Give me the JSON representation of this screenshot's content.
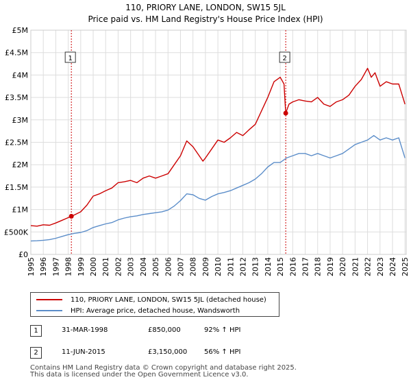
{
  "chart_data": {
    "type": "line",
    "title": "110, PRIORY LANE, LONDON, SW15 5JL",
    "subtitle": "Price paid vs. HM Land Registry's House Price Index (HPI)",
    "xlim": [
      1995,
      2025.1
    ],
    "ylim": [
      0,
      5000000
    ],
    "y_ticks": [
      {
        "value": 0,
        "label": "£0"
      },
      {
        "value": 500000,
        "label": "£500K"
      },
      {
        "value": 1000000,
        "label": "£1M"
      },
      {
        "value": 1500000,
        "label": "£1.5M"
      },
      {
        "value": 2000000,
        "label": "£2M"
      },
      {
        "value": 2500000,
        "label": "£2.5M"
      },
      {
        "value": 3000000,
        "label": "£3M"
      },
      {
        "value": 3500000,
        "label": "£3.5M"
      },
      {
        "value": 4000000,
        "label": "£4M"
      },
      {
        "value": 4500000,
        "label": "£4.5M"
      },
      {
        "value": 5000000,
        "label": "£5M"
      }
    ],
    "x_ticks": [
      "1995",
      "1996",
      "1997",
      "1998",
      "1999",
      "2000",
      "2001",
      "2002",
      "2003",
      "2004",
      "2005",
      "2006",
      "2007",
      "2008",
      "2009",
      "2010",
      "2011",
      "2012",
      "2013",
      "2014",
      "2015",
      "2016",
      "2017",
      "2018",
      "2019",
      "2020",
      "2021",
      "2022",
      "2023",
      "2024",
      "2025"
    ],
    "grid": true,
    "series": [
      {
        "name": "110, PRIORY LANE, LONDON, SW15 5JL (detached house)",
        "color": "#cc0000",
        "x": [
          1995.0,
          1995.5,
          1996.0,
          1996.5,
          1997.0,
          1997.5,
          1998.0,
          1998.25,
          1998.5,
          1999.0,
          1999.5,
          2000.0,
          2000.5,
          2001.0,
          2001.5,
          2002.0,
          2002.5,
          2003.0,
          2003.5,
          2004.0,
          2004.5,
          2005.0,
          2005.5,
          2006.0,
          2006.5,
          2007.0,
          2007.5,
          2008.0,
          2008.5,
          2008.8,
          2009.0,
          2009.5,
          2010.0,
          2010.5,
          2011.0,
          2011.5,
          2012.0,
          2012.5,
          2013.0,
          2013.5,
          2014.0,
          2014.5,
          2015.0,
          2015.3,
          2015.44,
          2015.7,
          2016.0,
          2016.5,
          2017.0,
          2017.5,
          2018.0,
          2018.5,
          2019.0,
          2019.5,
          2020.0,
          2020.5,
          2021.0,
          2021.5,
          2022.0,
          2022.3,
          2022.6,
          2023.0,
          2023.5,
          2024.0,
          2024.5,
          2025.0
        ],
        "values": [
          640000,
          630000,
          660000,
          650000,
          700000,
          760000,
          820000,
          850000,
          880000,
          950000,
          1100000,
          1300000,
          1350000,
          1420000,
          1480000,
          1600000,
          1620000,
          1650000,
          1600000,
          1700000,
          1750000,
          1700000,
          1750000,
          1800000,
          2000000,
          2200000,
          2530000,
          2400000,
          2200000,
          2080000,
          2150000,
          2350000,
          2550000,
          2500000,
          2600000,
          2720000,
          2650000,
          2780000,
          2900000,
          3200000,
          3500000,
          3850000,
          3950000,
          3800000,
          3150000,
          3350000,
          3400000,
          3450000,
          3420000,
          3400000,
          3500000,
          3350000,
          3300000,
          3400000,
          3450000,
          3550000,
          3750000,
          3900000,
          4150000,
          3950000,
          4050000,
          3750000,
          3850000,
          3800000,
          3800000,
          3350000
        ]
      },
      {
        "name": "HPI: Average price, detached house, Wandsworth",
        "color": "#5b8dc9",
        "x": [
          1995.0,
          1995.5,
          1996.0,
          1996.5,
          1997.0,
          1997.5,
          1998.0,
          1998.5,
          1999.0,
          1999.5,
          2000.0,
          2000.5,
          2001.0,
          2001.5,
          2002.0,
          2002.5,
          2003.0,
          2003.5,
          2004.0,
          2004.5,
          2005.0,
          2005.5,
          2006.0,
          2006.5,
          2007.0,
          2007.5,
          2008.0,
          2008.5,
          2009.0,
          2009.5,
          2010.0,
          2010.5,
          2011.0,
          2011.5,
          2012.0,
          2012.5,
          2013.0,
          2013.5,
          2014.0,
          2014.5,
          2015.0,
          2015.5,
          2016.0,
          2016.5,
          2017.0,
          2017.5,
          2018.0,
          2018.5,
          2019.0,
          2019.5,
          2020.0,
          2020.5,
          2021.0,
          2021.5,
          2022.0,
          2022.5,
          2023.0,
          2023.5,
          2024.0,
          2024.5,
          2025.0
        ],
        "values": [
          300000,
          305000,
          315000,
          330000,
          360000,
          400000,
          440000,
          470000,
          490000,
          530000,
          600000,
          640000,
          680000,
          710000,
          770000,
          810000,
          840000,
          860000,
          890000,
          910000,
          930000,
          950000,
          990000,
          1080000,
          1200000,
          1350000,
          1330000,
          1250000,
          1210000,
          1290000,
          1350000,
          1380000,
          1420000,
          1480000,
          1540000,
          1600000,
          1680000,
          1800000,
          1950000,
          2050000,
          2050000,
          2150000,
          2200000,
          2250000,
          2250000,
          2200000,
          2250000,
          2200000,
          2150000,
          2200000,
          2250000,
          2350000,
          2450000,
          2500000,
          2550000,
          2650000,
          2550000,
          2600000,
          2550000,
          2600000,
          2150000
        ]
      }
    ],
    "transactions": [
      {
        "id": "1",
        "date": "31-MAR-1998",
        "year": 1998.25,
        "price": 850000,
        "price_label": "£850,000",
        "hpi_change": "92% ↑ HPI"
      },
      {
        "id": "2",
        "date": "11-JUN-2015",
        "year": 2015.44,
        "price": 3150000,
        "price_label": "£3,150,000",
        "hpi_change": "56% ↑ HPI"
      }
    ],
    "colors": {
      "grid": "#dddddd",
      "plot_bg": "#ffffff",
      "marker_line": "#cc0000"
    }
  },
  "footer": {
    "line1": "Contains HM Land Registry data © Crown copyright and database right 2025.",
    "line2": "This data is licensed under the Open Government Licence v3.0."
  }
}
